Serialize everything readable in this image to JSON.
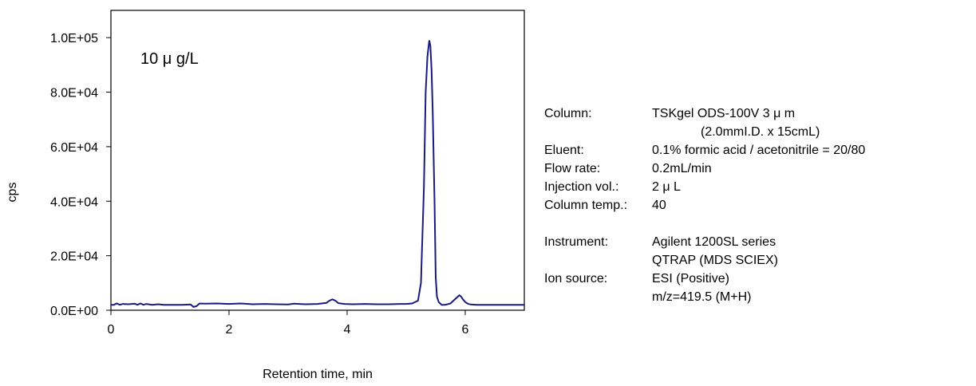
{
  "chart_data": {
    "type": "line",
    "annotation": "10 μ g/L",
    "xlabel": "Retention time, min",
    "ylabel": "cps",
    "xlim": [
      0,
      7
    ],
    "ylim": [
      0,
      110000
    ],
    "x_ticks": [
      0,
      2,
      4,
      6
    ],
    "x_tick_labels": [
      "0",
      "2",
      "4",
      "6"
    ],
    "y_ticks": [
      0,
      20000,
      40000,
      60000,
      80000,
      100000
    ],
    "y_tick_labels": [
      "0.0E+00",
      "2.0E+04",
      "4.0E+04",
      "6.0E+04",
      "8.0E+04",
      "1.0E+05"
    ],
    "grid": false,
    "line_color": "#1a1a80",
    "series": [
      {
        "x": [
          0,
          0.05,
          0.1,
          0.15,
          0.2,
          0.3,
          0.4,
          0.45,
          0.5,
          0.55,
          0.6,
          0.7,
          0.8,
          0.9,
          1.0,
          1.2,
          1.35,
          1.4,
          1.45,
          1.5,
          1.6,
          1.8,
          2.0,
          2.2,
          2.4,
          2.6,
          2.8,
          3.0,
          3.1,
          3.3,
          3.5,
          3.65,
          3.7,
          3.75,
          3.8,
          3.85,
          3.95,
          4.1,
          4.3,
          4.5,
          4.7,
          4.9,
          5.0,
          5.1,
          5.2,
          5.25,
          5.3,
          5.33,
          5.36,
          5.39,
          5.41,
          5.43,
          5.45,
          5.48,
          5.5,
          5.52,
          5.55,
          5.6,
          5.65,
          5.7,
          5.75,
          5.8,
          5.85,
          5.9,
          5.93,
          5.96,
          6.0,
          6.05,
          6.1,
          6.2,
          6.4,
          6.6,
          6.8,
          7.0
        ],
        "y": [
          2000,
          2000,
          2500,
          2000,
          2300,
          2200,
          2400,
          2000,
          2500,
          2000,
          2300,
          2000,
          2200,
          2000,
          2000,
          2000,
          2100,
          1200,
          1500,
          2500,
          2400,
          2500,
          2300,
          2500,
          2200,
          2300,
          2200,
          2100,
          2400,
          2200,
          2300,
          2700,
          3500,
          4000,
          3500,
          2600,
          2300,
          2200,
          2300,
          2200,
          2200,
          2300,
          2300,
          2500,
          3500,
          10000,
          45000,
          80000,
          93000,
          99000,
          97000,
          88000,
          72000,
          40000,
          12000,
          5000,
          3000,
          2000,
          2000,
          2200,
          2500,
          3500,
          4500,
          5500,
          5000,
          4000,
          3000,
          2300,
          2100,
          2000,
          2000,
          2000,
          2000,
          2000
        ]
      }
    ]
  },
  "conditions": {
    "column_label": "Column:",
    "column_value": "TSKgel ODS-100V 3 μ m",
    "column_value2": "(2.0mmI.D. x 15cmL)",
    "eluent_label": "Eluent:",
    "eluent_value": "0.1% formic acid / acetonitrile = 20/80",
    "flow_label": "Flow rate:",
    "flow_value": "0.2mL/min",
    "injection_label": "Injection vol.:",
    "injection_value": "2 μ L",
    "temp_label": "Column temp.:",
    "temp_value": "40",
    "instrument_label": "Instrument:",
    "instrument_value": "Agilent 1200SL series",
    "instrument_value2": "QTRAP (MDS SCIEX)",
    "ion_label": "Ion source:",
    "ion_value": "ESI (Positive)",
    "ion_value2": "m/z=419.5 (M+H)"
  }
}
